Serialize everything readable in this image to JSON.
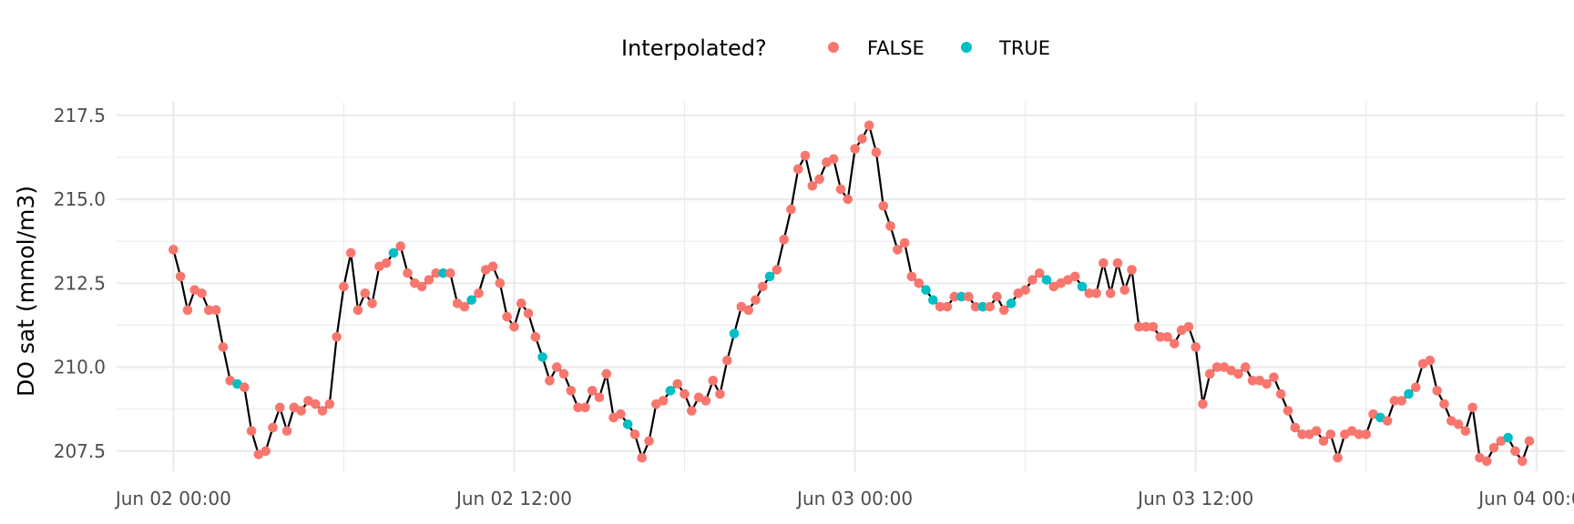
{
  "chart_data": {
    "type": "line",
    "ylabel": "DO sat (mmol/m3)",
    "xlabel": "",
    "x_start": "2022-06-02 00:00",
    "x_step_minutes": 15,
    "xlim": [
      "2022-06-01 22:00",
      "2022-06-04 01:00"
    ],
    "ylim": [
      206.9,
      217.9
    ],
    "x_ticks": [
      "2022-06-02 00:00",
      "2022-06-02 12:00",
      "2022-06-03 00:00",
      "2022-06-03 12:00",
      "2022-06-04 00:00"
    ],
    "x_tick_labels": [
      "Jun 02 00:00",
      "Jun 02 12:00",
      "Jun 03 00:00",
      "Jun 03 12:00",
      "Jun 04 00:00"
    ],
    "y_ticks": [
      207.5,
      210.0,
      212.5,
      215.0,
      217.5
    ],
    "y_tick_labels": [
      "207.5",
      "210.0",
      "212.5",
      "215.0",
      "217.5"
    ],
    "grid": true,
    "legend": {
      "title": "Interpolated?",
      "position": "top",
      "entries": [
        {
          "label": "FALSE",
          "color": "#F8766D"
        },
        {
          "label": "TRUE",
          "color": "#00BFC4"
        }
      ]
    },
    "line_color": "#000000",
    "values": [
      213.5,
      212.7,
      211.7,
      212.3,
      212.2,
      211.7,
      211.7,
      210.6,
      209.6,
      209.5,
      209.4,
      208.1,
      207.4,
      207.5,
      208.2,
      208.8,
      208.1,
      208.8,
      208.7,
      209.0,
      208.9,
      208.7,
      208.9,
      210.9,
      212.4,
      213.4,
      211.7,
      212.2,
      211.9,
      213.0,
      213.1,
      213.4,
      213.6,
      212.8,
      212.5,
      212.4,
      212.6,
      212.8,
      212.8,
      212.8,
      211.9,
      211.8,
      212.0,
      212.2,
      212.9,
      213.0,
      212.5,
      211.5,
      211.2,
      211.9,
      211.6,
      210.9,
      210.3,
      209.6,
      210.0,
      209.8,
      209.3,
      208.8,
      208.8,
      209.3,
      209.1,
      209.8,
      208.5,
      208.6,
      208.3,
      208.0,
      207.3,
      207.8,
      208.9,
      209.0,
      209.3,
      209.5,
      209.2,
      208.7,
      209.1,
      209.0,
      209.6,
      209.2,
      210.2,
      211.0,
      211.8,
      211.7,
      212.0,
      212.4,
      212.7,
      212.9,
      213.8,
      214.7,
      215.9,
      216.3,
      215.4,
      215.6,
      216.1,
      216.2,
      215.3,
      215.0,
      216.5,
      216.8,
      217.2,
      216.4,
      214.8,
      214.2,
      213.5,
      213.7,
      212.7,
      212.5,
      212.3,
      212.0,
      211.8,
      211.8,
      212.1,
      212.1,
      212.1,
      211.8,
      211.8,
      211.8,
      212.1,
      211.7,
      211.9,
      212.2,
      212.3,
      212.6,
      212.8,
      212.6,
      212.4,
      212.5,
      212.6,
      212.7,
      212.4,
      212.2,
      212.2,
      213.1,
      212.2,
      213.1,
      212.3,
      212.9,
      211.2,
      211.2,
      211.2,
      210.9,
      210.9,
      210.7,
      211.1,
      211.2,
      210.6,
      208.9,
      209.8,
      210.0,
      210.0,
      209.9,
      209.8,
      210.0,
      209.6,
      209.6,
      209.5,
      209.7,
      209.2,
      208.7,
      208.2,
      208.0,
      208.0,
      208.1,
      207.8,
      208.0,
      207.3,
      208.0,
      208.1,
      208.0,
      208.0,
      208.6,
      208.5,
      208.4,
      209.0,
      209.0,
      209.2,
      209.4,
      210.1,
      210.2,
      209.3,
      208.9,
      208.4,
      208.3,
      208.1,
      208.8,
      207.3,
      207.2,
      207.6,
      207.8,
      207.9,
      207.5,
      207.2,
      207.8
    ],
    "interpolated": [
      false,
      false,
      false,
      false,
      false,
      false,
      false,
      false,
      false,
      true,
      false,
      false,
      false,
      false,
      false,
      false,
      false,
      false,
      false,
      false,
      false,
      false,
      false,
      false,
      false,
      false,
      false,
      false,
      false,
      false,
      false,
      true,
      false,
      false,
      false,
      false,
      false,
      false,
      true,
      false,
      false,
      false,
      true,
      false,
      false,
      false,
      false,
      false,
      false,
      false,
      false,
      false,
      true,
      false,
      false,
      false,
      false,
      false,
      false,
      false,
      false,
      false,
      false,
      false,
      true,
      false,
      false,
      false,
      false,
      false,
      true,
      false,
      false,
      false,
      false,
      false,
      false,
      false,
      false,
      true,
      false,
      false,
      false,
      false,
      true,
      false,
      false,
      false,
      false,
      false,
      false,
      false,
      false,
      false,
      false,
      false,
      false,
      false,
      false,
      false,
      false,
      false,
      false,
      false,
      false,
      false,
      true,
      true,
      false,
      false,
      false,
      true,
      false,
      false,
      true,
      false,
      false,
      false,
      true,
      false,
      false,
      false,
      false,
      true,
      false,
      false,
      false,
      false,
      true,
      false,
      false,
      false,
      false,
      false,
      false,
      false,
      false,
      false,
      false,
      false,
      false,
      false,
      false,
      false,
      false,
      false,
      false,
      false,
      false,
      false,
      false,
      false,
      false,
      false,
      false,
      false,
      false,
      false,
      false,
      false,
      false,
      false,
      false,
      false,
      false,
      false,
      false,
      false,
      false,
      false,
      true,
      false,
      false,
      false,
      true,
      false,
      false,
      false,
      false,
      false,
      false,
      false,
      false,
      false,
      false,
      false,
      false,
      false,
      true,
      false,
      false
    ]
  }
}
